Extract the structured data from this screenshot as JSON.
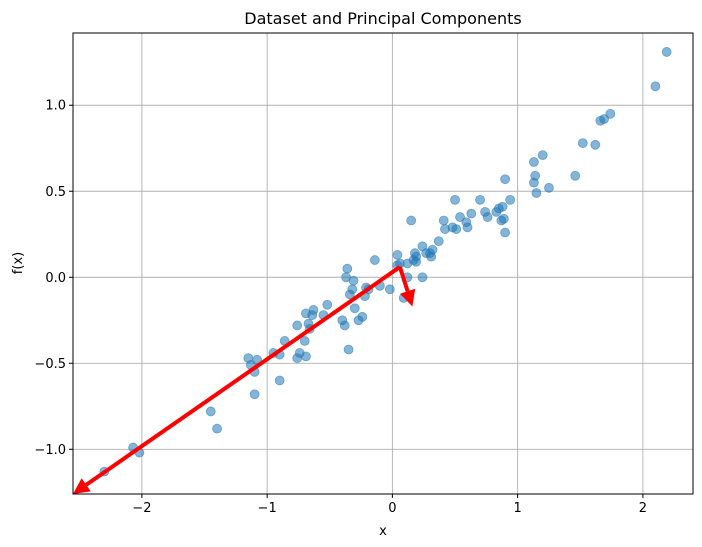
{
  "chart_data": {
    "type": "scatter",
    "title": "Dataset and Principal Components",
    "xlabel": "x",
    "ylabel": "f(x)",
    "xlim": [
      -2.55,
      2.4
    ],
    "ylim": [
      -1.26,
      1.42
    ],
    "xticks": [
      -2,
      -1,
      0,
      1,
      2
    ],
    "xtick_labels": [
      "−2",
      "−1",
      "0",
      "1",
      "2"
    ],
    "yticks": [
      -1.0,
      -0.5,
      0.0,
      0.5,
      1.0
    ],
    "ytick_labels": [
      "−1.0",
      "−0.5",
      "0.0",
      "0.5",
      "1.0"
    ],
    "grid": true,
    "point_color": "#1f77b4",
    "point_alpha": 0.55,
    "arrow_color": "#ff0000",
    "points": [
      [
        -2.3,
        -1.13
      ],
      [
        -2.07,
        -0.99
      ],
      [
        -2.02,
        -1.02
      ],
      [
        -1.45,
        -0.78
      ],
      [
        -1.4,
        -0.88
      ],
      [
        -1.15,
        -0.47
      ],
      [
        -1.13,
        -0.51
      ],
      [
        -1.1,
        -0.55
      ],
      [
        -1.1,
        -0.68
      ],
      [
        -1.08,
        -0.48
      ],
      [
        -0.95,
        -0.44
      ],
      [
        -0.9,
        -0.45
      ],
      [
        -0.9,
        -0.6
      ],
      [
        -0.86,
        -0.37
      ],
      [
        -0.76,
        -0.28
      ],
      [
        -0.76,
        -0.47
      ],
      [
        -0.74,
        -0.44
      ],
      [
        -0.7,
        -0.37
      ],
      [
        -0.69,
        -0.21
      ],
      [
        -0.69,
        -0.46
      ],
      [
        -0.67,
        -0.27
      ],
      [
        -0.66,
        -0.3
      ],
      [
        -0.64,
        -0.22
      ],
      [
        -0.63,
        -0.19
      ],
      [
        -0.55,
        -0.22
      ],
      [
        -0.52,
        -0.16
      ],
      [
        -0.4,
        -0.25
      ],
      [
        -0.38,
        -0.28
      ],
      [
        -0.37,
        0.0
      ],
      [
        -0.36,
        0.05
      ],
      [
        -0.35,
        -0.42
      ],
      [
        -0.34,
        -0.1
      ],
      [
        -0.32,
        -0.07
      ],
      [
        -0.31,
        -0.02
      ],
      [
        -0.3,
        -0.18
      ],
      [
        -0.27,
        -0.25
      ],
      [
        -0.24,
        -0.23
      ],
      [
        -0.22,
        -0.11
      ],
      [
        -0.21,
        -0.06
      ],
      [
        -0.19,
        -0.07
      ],
      [
        -0.14,
        0.1
      ],
      [
        -0.1,
        -0.05
      ],
      [
        -0.02,
        -0.07
      ],
      [
        0.04,
        0.13
      ],
      [
        0.04,
        0.07
      ],
      [
        0.06,
        0.08
      ],
      [
        0.09,
        -0.12
      ],
      [
        0.12,
        0.0
      ],
      [
        0.12,
        0.08
      ],
      [
        0.15,
        0.33
      ],
      [
        0.17,
        0.1
      ],
      [
        0.18,
        0.14
      ],
      [
        0.19,
        0.12
      ],
      [
        0.19,
        0.09
      ],
      [
        0.24,
        0.18
      ],
      [
        0.24,
        0.0
      ],
      [
        0.27,
        0.14
      ],
      [
        0.3,
        0.14
      ],
      [
        0.31,
        0.12
      ],
      [
        0.32,
        0.16
      ],
      [
        0.37,
        0.21
      ],
      [
        0.41,
        0.33
      ],
      [
        0.42,
        0.28
      ],
      [
        0.48,
        0.29
      ],
      [
        0.5,
        0.45
      ],
      [
        0.51,
        0.28
      ],
      [
        0.54,
        0.35
      ],
      [
        0.59,
        0.32
      ],
      [
        0.6,
        0.29
      ],
      [
        0.63,
        0.37
      ],
      [
        0.7,
        0.45
      ],
      [
        0.74,
        0.38
      ],
      [
        0.76,
        0.35
      ],
      [
        0.83,
        0.38
      ],
      [
        0.85,
        0.4
      ],
      [
        0.87,
        0.33
      ],
      [
        0.88,
        0.41
      ],
      [
        0.89,
        0.34
      ],
      [
        0.9,
        0.26
      ],
      [
        0.9,
        0.57
      ],
      [
        0.94,
        0.45
      ],
      [
        1.13,
        0.55
      ],
      [
        1.13,
        0.67
      ],
      [
        1.14,
        0.59
      ],
      [
        1.15,
        0.49
      ],
      [
        1.2,
        0.71
      ],
      [
        1.25,
        0.52
      ],
      [
        1.46,
        0.59
      ],
      [
        1.52,
        0.78
      ],
      [
        1.62,
        0.77
      ],
      [
        1.66,
        0.91
      ],
      [
        1.69,
        0.92
      ],
      [
        1.74,
        0.95
      ],
      [
        2.1,
        1.11
      ],
      [
        2.19,
        1.31
      ]
    ],
    "arrows": [
      {
        "from": [
          0.06,
          0.06
        ],
        "to": [
          -2.55,
          -1.26
        ]
      },
      {
        "from": [
          0.06,
          0.06
        ],
        "to": [
          0.16,
          -0.17
        ]
      }
    ]
  }
}
